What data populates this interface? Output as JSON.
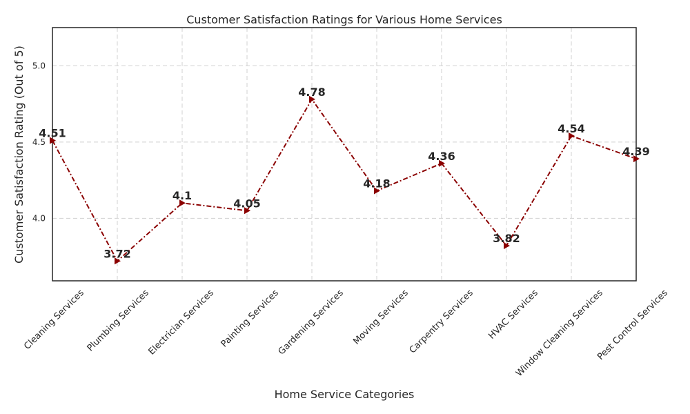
{
  "chart_data": {
    "type": "line",
    "title": "Customer Satisfaction Ratings for Various Home Services",
    "xlabel": "Home Service Categories",
    "ylabel": "Customer Satisfaction Rating (Out of 5)",
    "categories": [
      "Cleaning Services",
      "Plumbing Services",
      "Electrician Services",
      "Painting Services",
      "Gardening Services",
      "Moving Services",
      "Carpentry Services",
      "HVAC Services",
      "Window Cleaning Services",
      "Pest Control Services"
    ],
    "series": [
      {
        "values": [
          4.51,
          3.72,
          4.1,
          4.05,
          4.78,
          4.18,
          4.36,
          3.82,
          4.54,
          4.39
        ],
        "value_labels": [
          "4.51",
          "3.72",
          "4.1",
          "4.05",
          "4.78",
          "4.18",
          "4.36",
          "3.82",
          "4.54",
          "4.39"
        ],
        "color": "#8b0000",
        "line_style": "dash-dot",
        "marker": "triangle-right"
      }
    ],
    "ylim": [
      3.59,
      5.25
    ],
    "yticks": [
      4.0,
      4.5,
      5.0
    ],
    "ytick_labels": [
      "4.0",
      "4.5",
      "5.0"
    ],
    "grid": true
  }
}
